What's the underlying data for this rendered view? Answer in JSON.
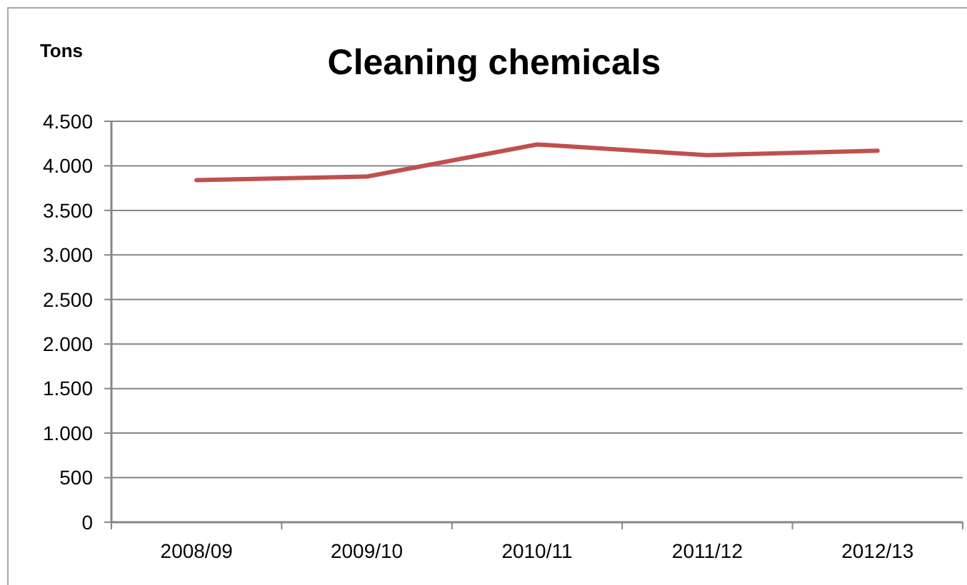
{
  "chart_data": {
    "type": "line",
    "title": "Cleaning chemicals",
    "ylabel": "Tons",
    "categories": [
      "2008/09",
      "2009/10",
      "2010/11",
      "2011/12",
      "2012/13"
    ],
    "series": [
      {
        "color": "#c0504d",
        "values": [
          3840,
          3880,
          4240,
          4120,
          4170
        ]
      }
    ],
    "ylim": [
      0,
      4500
    ],
    "yticks": [
      0,
      500,
      {
        "value": 1000,
        "label": "1.000"
      },
      {
        "value": 1500,
        "label": "1.500"
      },
      {
        "value": 2000,
        "label": "2.000"
      },
      {
        "value": 2500,
        "label": "2.500"
      },
      {
        "value": 3000,
        "label": "3.000"
      },
      {
        "value": 3500,
        "label": "3.500"
      },
      {
        "value": 4000,
        "label": "4.000"
      },
      {
        "value": 4500,
        "label": "4.500"
      }
    ],
    "grid": "y",
    "marker": "none",
    "line_style": "solid"
  }
}
